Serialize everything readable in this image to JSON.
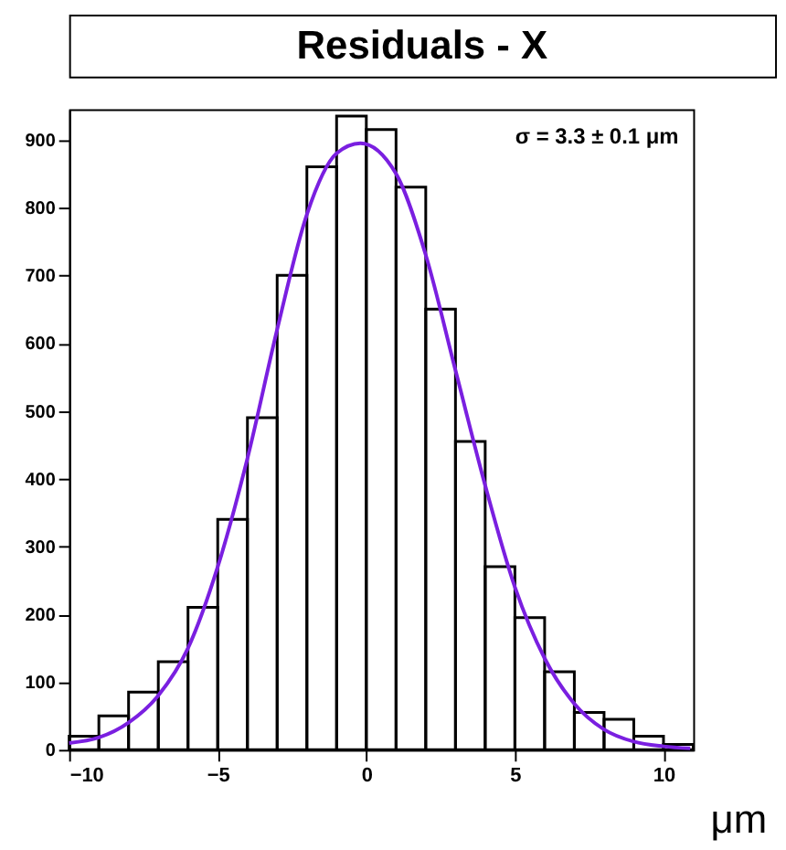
{
  "chart_data": {
    "type": "histogram",
    "title": "Residuals - X",
    "xlabel": "μm",
    "annotations": [
      "σ = 3.3 ± 0.1 μm"
    ],
    "xlim": [
      -10,
      11
    ],
    "xticks": [
      -10,
      -5,
      0,
      5,
      10
    ],
    "ylim": [
      0,
      945
    ],
    "yticks": [
      0,
      100,
      200,
      300,
      400,
      500,
      600,
      700,
      800,
      900
    ],
    "grid": false,
    "series": [
      {
        "color": "#000000",
        "bins": [
          -10,
          -9,
          -8,
          -7,
          -6,
          -5,
          -4,
          -3,
          -2,
          -1,
          0,
          1,
          2,
          3,
          4,
          5,
          6,
          7,
          8,
          9,
          10,
          11
        ],
        "values": [
          20,
          50,
          85,
          130,
          210,
          340,
          490,
          700,
          860,
          935,
          915,
          830,
          650,
          455,
          270,
          195,
          115,
          55,
          45,
          20,
          8
        ]
      },
      {
        "type": "line",
        "color": "#7a1fe0",
        "x": [
          -10,
          -9,
          -8,
          -7,
          -6,
          -5,
          -4,
          -3,
          -2,
          -1,
          -0.2,
          1,
          2,
          3,
          4,
          5,
          6,
          7,
          8,
          9,
          10,
          10.9
        ],
        "values": [
          10,
          18,
          40,
          80,
          150,
          270,
          430,
          620,
          790,
          880,
          895,
          850,
          730,
          560,
          390,
          240,
          135,
          68,
          30,
          12,
          5,
          2
        ]
      }
    ]
  }
}
